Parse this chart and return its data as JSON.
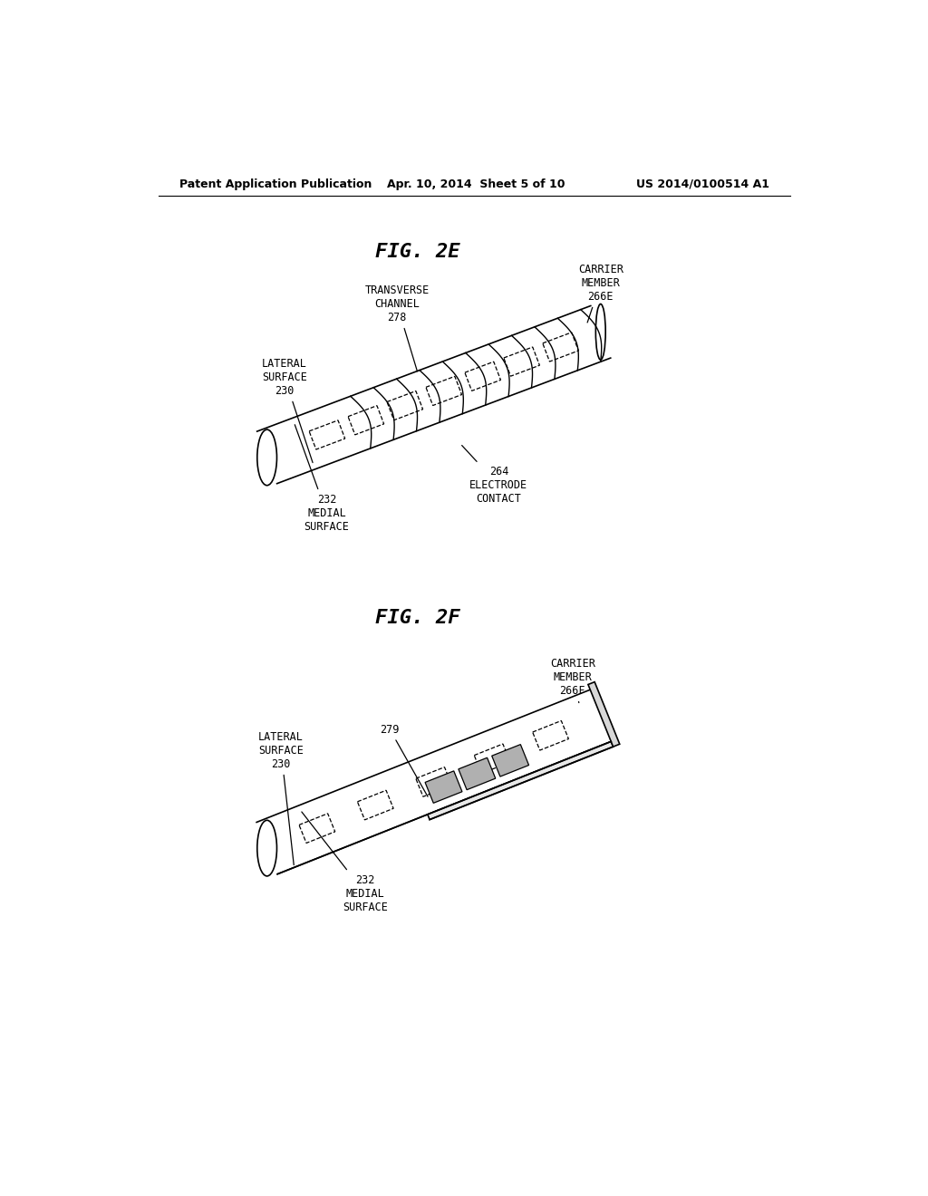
{
  "bg_color": "#ffffff",
  "header_left": "Patent Application Publication",
  "header_mid": "Apr. 10, 2014  Sheet 5 of 10",
  "header_right": "US 2014/0100514 A1",
  "fig2e_title": "FIG. 2E",
  "fig2f_title": "FIG. 2F",
  "lw": 1.2
}
